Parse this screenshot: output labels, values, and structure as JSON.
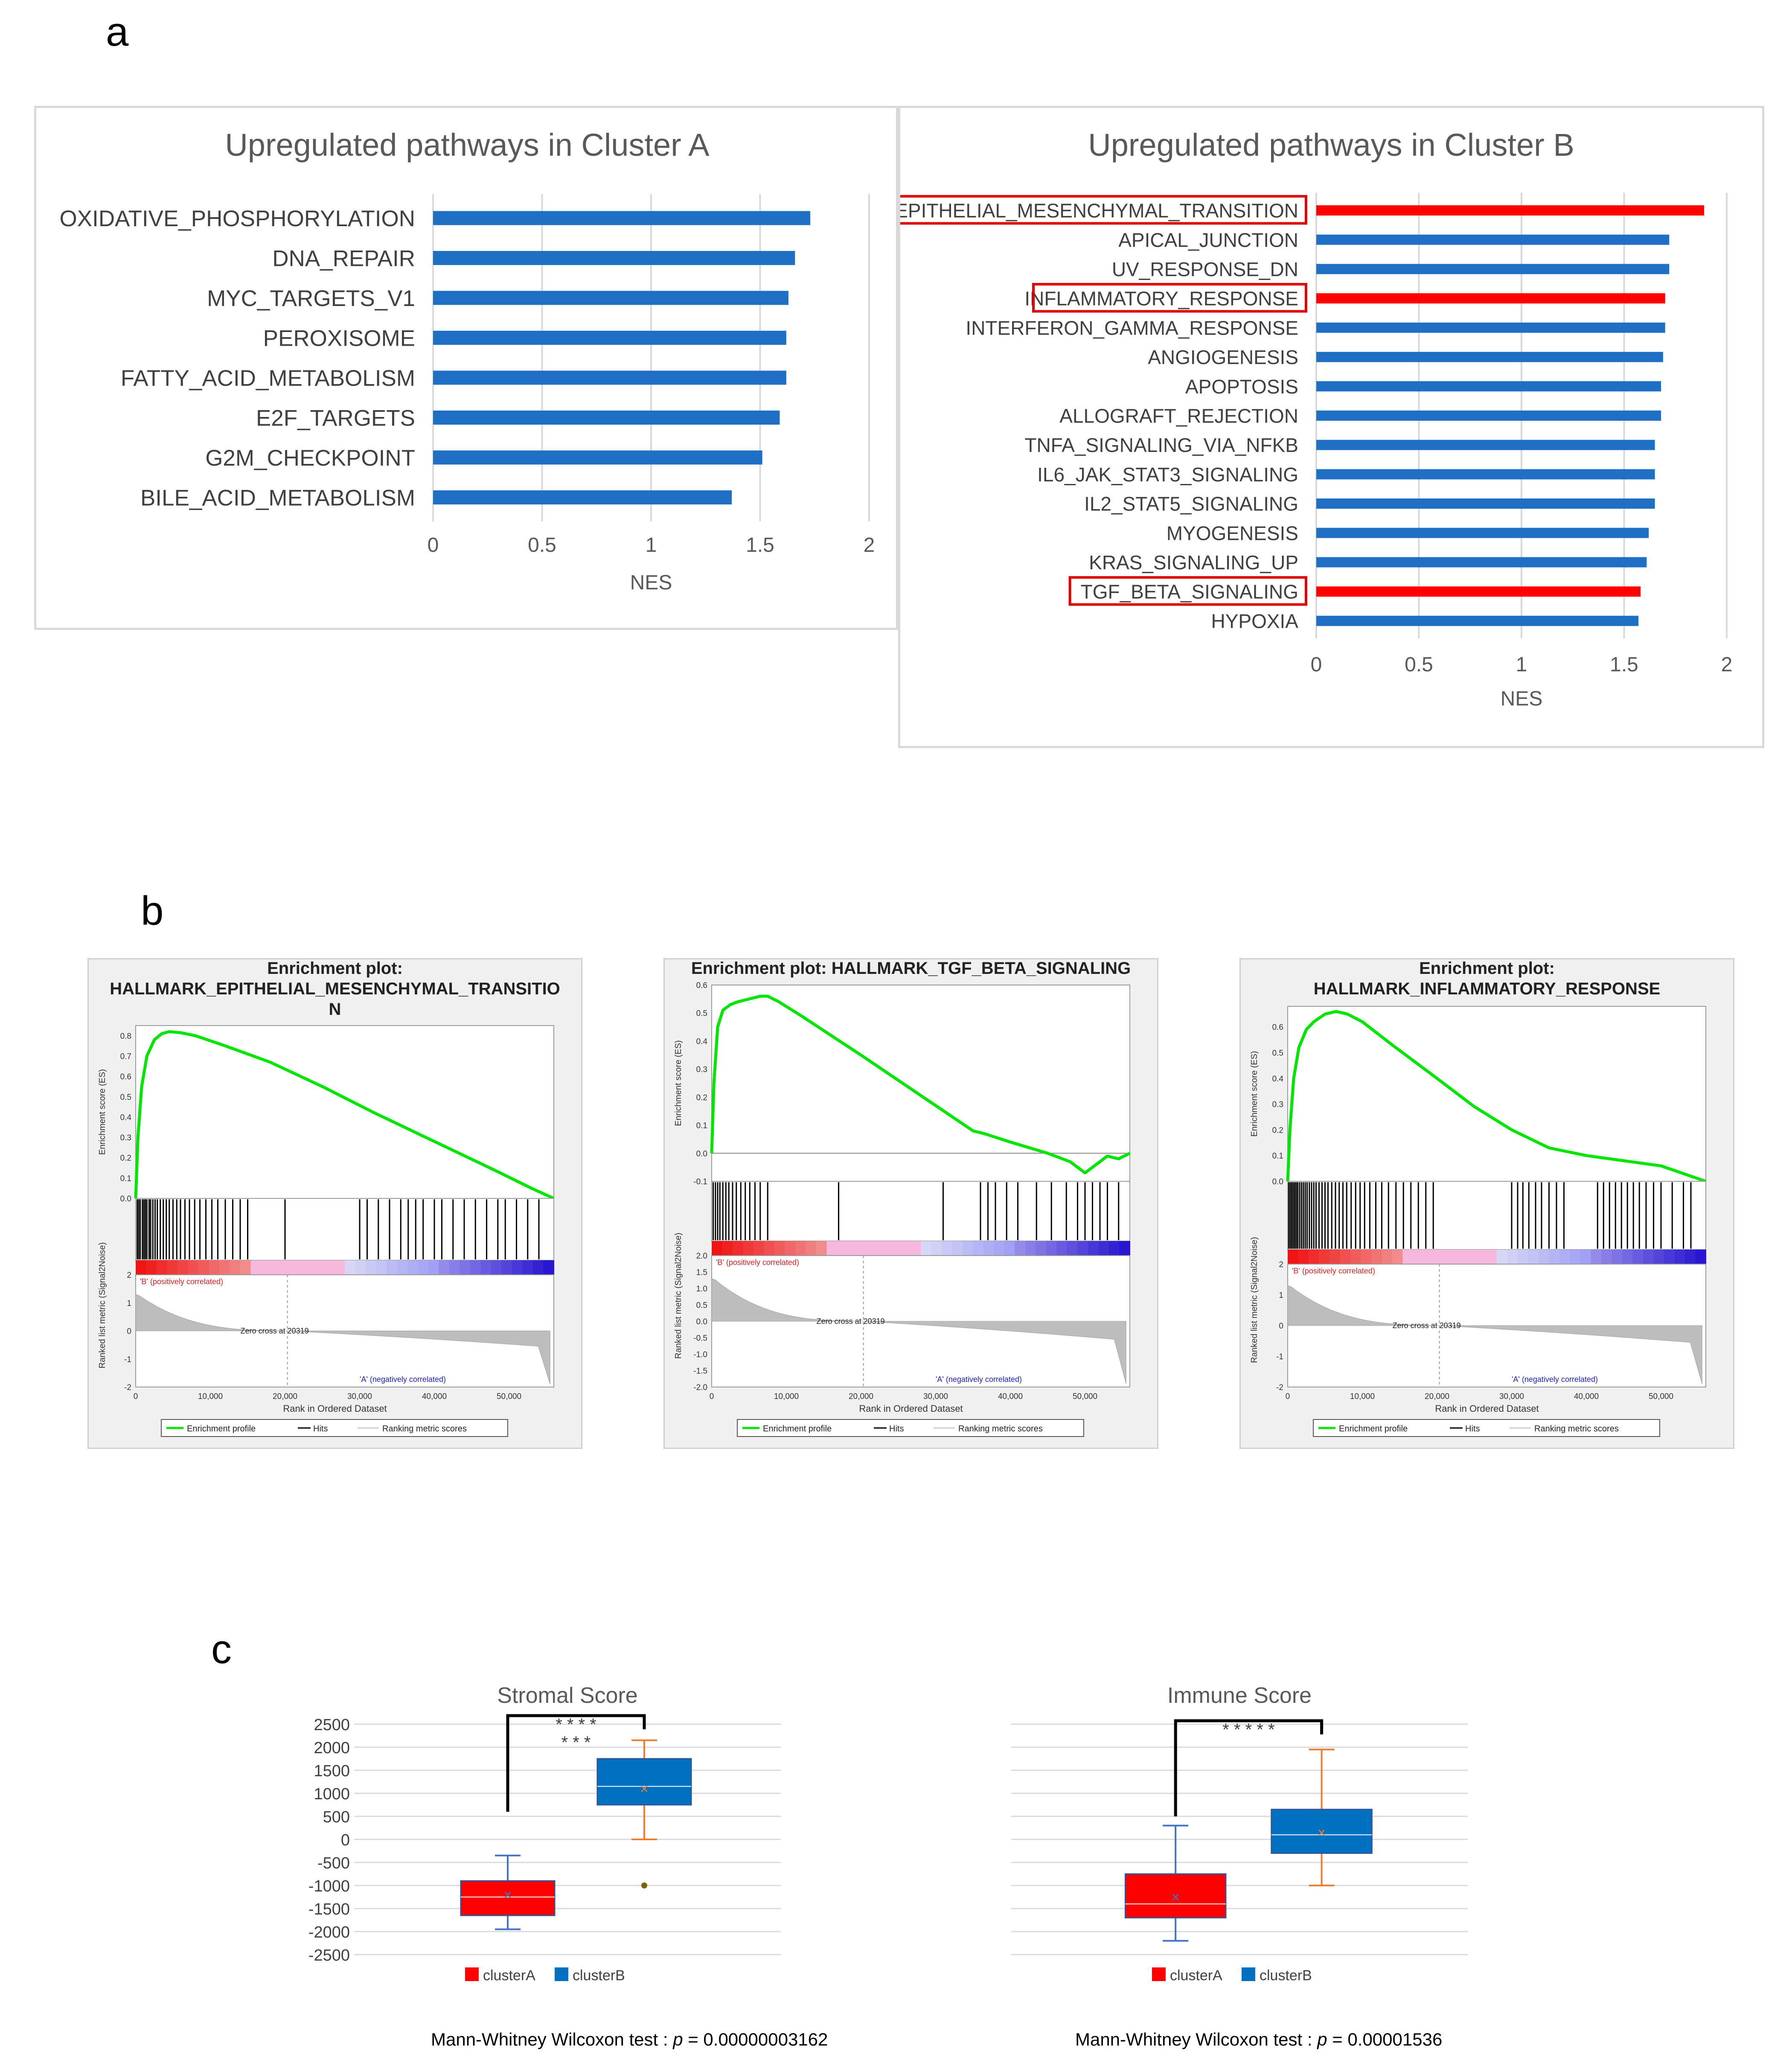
{
  "labels": {
    "a": "a",
    "b": "b",
    "c": "c"
  },
  "chart_data": [
    {
      "id": "cluster-a-bars",
      "type": "bar",
      "orientation": "horizontal",
      "title": "Upregulated pathways in Cluster A",
      "xlabel": "NES",
      "xlim": [
        0,
        2
      ],
      "xticks": [
        "0",
        "0.5",
        "1",
        "1.5",
        "2"
      ],
      "bar_color": "#1f6fc5",
      "categories": [
        "OXIDATIVE_PHOSPHORYLATION",
        "DNA_REPAIR",
        "MYC_TARGETS_V1",
        "PEROXISOME",
        "FATTY_ACID_METABOLISM",
        "E2F_TARGETS",
        "G2M_CHECKPOINT",
        "BILE_ACID_METABOLISM"
      ],
      "values": [
        1.73,
        1.66,
        1.63,
        1.62,
        1.62,
        1.59,
        1.51,
        1.37
      ]
    },
    {
      "id": "cluster-b-bars",
      "type": "bar",
      "orientation": "horizontal",
      "title": "Upregulated pathways in Cluster B",
      "xlabel": "NES",
      "xlim": [
        0,
        2
      ],
      "xticks": [
        "0",
        "0.5",
        "1",
        "1.5",
        "2"
      ],
      "bar_color": "#1f6fc5",
      "highlight_color": "#ff0000",
      "categories": [
        "EPITHELIAL_MESENCHYMAL_TRANSITION",
        "APICAL_JUNCTION",
        "UV_RESPONSE_DN",
        "INFLAMMATORY_RESPONSE",
        "INTERFERON_GAMMA_RESPONSE",
        "ANGIOGENESIS",
        "APOPTOSIS",
        "ALLOGRAFT_REJECTION",
        "TNFA_SIGNALING_VIA_NFKB",
        "IL6_JAK_STAT3_SIGNALING",
        "IL2_STAT5_SIGNALING",
        "MYOGENESIS",
        "KRAS_SIGNALING_UP",
        "TGF_BETA_SIGNALING",
        "HYPOXIA"
      ],
      "values": [
        1.89,
        1.72,
        1.72,
        1.7,
        1.7,
        1.69,
        1.68,
        1.68,
        1.65,
        1.65,
        1.65,
        1.62,
        1.61,
        1.58,
        1.57
      ],
      "highlighted": [
        true,
        false,
        false,
        true,
        false,
        false,
        false,
        false,
        false,
        false,
        false,
        false,
        false,
        true,
        false
      ]
    },
    {
      "id": "gsea-emt",
      "type": "line",
      "title": "Enrichment plot:\nHALLMARK_EPITHELIAL_MESENCHYMAL_TRANSITIO\nN",
      "es_ylabel": "Enrichment score (ES)",
      "es_yticks": [
        "0.8",
        "0.7",
        "0.6",
        "0.5",
        "0.4",
        "0.3",
        "0.2",
        "0.1",
        "0.0"
      ],
      "es_ylim": [
        0,
        0.85
      ],
      "rank_ylabel": "Ranked list metric (Signal2Noise)",
      "rank_yticks": [
        "2",
        "1",
        "0",
        "-1",
        "-2"
      ],
      "rank_ylim": [
        -2,
        2
      ],
      "xlabel": "Rank in Ordered Dataset",
      "xticks": [
        "0",
        "10,000",
        "20,000",
        "30,000",
        "40,000",
        "50,000"
      ],
      "xlim": [
        0,
        56000
      ],
      "pos_label": "'B' (positively correlated)",
      "neg_label": "'A' (negatively correlated)",
      "zero_cross": "Zero cross at 20319",
      "zero_cross_x": 20319,
      "legend": [
        "Enrichment profile",
        "Hits",
        "Ranking metric scores"
      ],
      "es_curve": {
        "x": [
          0,
          300,
          800,
          1500,
          2500,
          3500,
          4500,
          6000,
          8000,
          12000,
          18000,
          25000,
          32000,
          40000,
          48000,
          53000,
          56000
        ],
        "y": [
          0.0,
          0.3,
          0.55,
          0.7,
          0.78,
          0.81,
          0.82,
          0.815,
          0.8,
          0.75,
          0.67,
          0.55,
          0.42,
          0.28,
          0.14,
          0.05,
          0.0
        ]
      },
      "hits": [
        200,
        400,
        600,
        900,
        1100,
        1300,
        1500,
        1800,
        2000,
        2300,
        2600,
        2900,
        3300,
        3700,
        4100,
        4500,
        5000,
        5500,
        6000,
        6600,
        7200,
        7900,
        8600,
        9400,
        10200,
        11000,
        12000,
        13000,
        14000,
        15000,
        20000,
        30000,
        31000,
        32500,
        34000,
        35500,
        36500,
        37500,
        38500,
        40000,
        41000,
        42500,
        44000,
        45500,
        47000,
        48500,
        49500,
        51000,
        52500,
        54000
      ]
    },
    {
      "id": "gsea-tgf",
      "type": "line",
      "title": "Enrichment plot: HALLMARK_TGF_BETA_SIGNALING",
      "es_ylabel": "Enrichment score (ES)",
      "es_yticks": [
        "0.6",
        "0.5",
        "0.4",
        "0.3",
        "0.2",
        "0.1",
        "0.0",
        "-0.1"
      ],
      "es_ylim": [
        -0.1,
        0.6
      ],
      "rank_ylabel": "Ranked list metric (Signal2Noise)",
      "rank_yticks": [
        "2.0",
        "1.5",
        "1.0",
        "0.5",
        "0.0",
        "-0.5",
        "-1.0",
        "-1.5",
        "-2.0"
      ],
      "rank_ylim": [
        -2,
        2
      ],
      "xlabel": "Rank in Ordered Dataset",
      "xticks": [
        "0",
        "10,000",
        "20,000",
        "30,000",
        "40,000",
        "50,000"
      ],
      "xlim": [
        0,
        56000
      ],
      "pos_label": "'B' (positively correlated)",
      "neg_label": "'A' (negatively correlated)",
      "zero_cross": "Zero cross at 20319",
      "zero_cross_x": 20319,
      "legend": [
        "Enrichment profile",
        "Hits",
        "Ranking metric scores"
      ],
      "es_curve": {
        "x": [
          0,
          300,
          800,
          1500,
          2500,
          3500,
          5000,
          6500,
          7500,
          9000,
          12000,
          16000,
          20000,
          25000,
          30000,
          35000,
          36500,
          40000,
          45000,
          48000,
          50000,
          51500,
          53000,
          54500,
          56000
        ],
        "y": [
          0.0,
          0.25,
          0.45,
          0.51,
          0.53,
          0.54,
          0.55,
          0.56,
          0.56,
          0.54,
          0.49,
          0.42,
          0.35,
          0.26,
          0.17,
          0.08,
          0.07,
          0.04,
          0.0,
          -0.03,
          -0.07,
          -0.04,
          -0.01,
          -0.02,
          0.0
        ]
      },
      "hits": [
        200,
        500,
        800,
        1100,
        1500,
        1900,
        2300,
        2800,
        3300,
        3900,
        4500,
        5100,
        5800,
        6500,
        7500,
        17000,
        31000,
        36000,
        37000,
        38000,
        39500,
        41000,
        43500,
        45500,
        47500,
        49000,
        50000,
        51000,
        52000,
        53000,
        54500
      ]
    },
    {
      "id": "gsea-inflam",
      "type": "line",
      "title": "Enrichment plot:\nHALLMARK_INFLAMMATORY_RESPONSE",
      "es_ylabel": "Enrichment score (ES)",
      "es_yticks": [
        "0.6",
        "0.5",
        "0.4",
        "0.3",
        "0.2",
        "0.1",
        "0.0"
      ],
      "es_ylim": [
        0,
        0.68
      ],
      "rank_ylabel": "Ranked list metric (Signal2Noise)",
      "rank_yticks": [
        "2",
        "1",
        "0",
        "-1",
        "-2"
      ],
      "rank_ylim": [
        -2,
        2
      ],
      "xlabel": "Rank in Ordered Dataset",
      "xticks": [
        "0",
        "10,000",
        "20,000",
        "30,000",
        "40,000",
        "50,000"
      ],
      "xlim": [
        0,
        56000
      ],
      "pos_label": "'B' (positively correlated)",
      "neg_label": "'A' (negatively correlated)",
      "zero_cross": "Zero cross at 20319",
      "zero_cross_x": 20319,
      "legend": [
        "Enrichment profile",
        "Hits",
        "Ranking metric scores"
      ],
      "es_curve": {
        "x": [
          0,
          300,
          800,
          1500,
          2500,
          3500,
          5000,
          6500,
          8000,
          10000,
          14000,
          20000,
          25000,
          30000,
          35000,
          40000,
          45000,
          50000,
          53000,
          56000
        ],
        "y": [
          0.0,
          0.2,
          0.4,
          0.52,
          0.59,
          0.62,
          0.65,
          0.66,
          0.65,
          0.62,
          0.53,
          0.4,
          0.29,
          0.2,
          0.13,
          0.1,
          0.08,
          0.06,
          0.03,
          0.0
        ]
      },
      "hits": [
        150,
        350,
        550,
        750,
        950,
        1150,
        1350,
        1600,
        1850,
        2100,
        2350,
        2600,
        2900,
        3200,
        3500,
        3800,
        4200,
        4600,
        5000,
        5400,
        5900,
        6400,
        6900,
        7400,
        7900,
        8500,
        9100,
        9700,
        10300,
        11000,
        11800,
        12600,
        13500,
        14500,
        15500,
        16500,
        17500,
        18500,
        19500,
        30000,
        30800,
        31500,
        32300,
        33200,
        34000,
        35000,
        36000,
        37000,
        41500,
        42300,
        43100,
        43900,
        44700,
        45500,
        46300,
        47100,
        48000,
        49000,
        50000,
        51500,
        53000,
        54000
      ]
    },
    {
      "id": "stromal-box",
      "type": "box",
      "title": "Stromal Score",
      "ylim": [
        -2500,
        2500
      ],
      "yticks": [
        "2500",
        "2000",
        "1500",
        "1000",
        "500",
        "0",
        "-500",
        "-1000",
        "-1500",
        "-2000",
        "-2500"
      ],
      "series": [
        {
          "name": "clusterA",
          "color": "#ff0000",
          "whisker_color": "#4472c4",
          "min": -1950,
          "q1": -1650,
          "median": -1250,
          "q3": -900,
          "max": -350,
          "mean": -1200,
          "outliers": []
        },
        {
          "name": "clusterB",
          "color": "#0070c0",
          "whisker_color": "#ed7d31",
          "min": 0,
          "q1": 750,
          "median": 1150,
          "q3": 1750,
          "max": 2150,
          "mean": 1100,
          "outliers": [
            -1000
          ]
        }
      ],
      "significance": [
        "* * * *",
        "* * *"
      ],
      "test_label": "Mann-Whitney Wilcoxon test :",
      "p_label": "p",
      "p_value": "= 0.00000003162"
    },
    {
      "id": "immune-box",
      "type": "box",
      "title": "Immune Score",
      "ylim": [
        -2500,
        2500
      ],
      "yticks": [],
      "series": [
        {
          "name": "clusterA",
          "color": "#ff0000",
          "whisker_color": "#4472c4",
          "min": -2200,
          "q1": -1700,
          "median": -1400,
          "q3": -750,
          "max": 300,
          "mean": -1250,
          "outliers": []
        },
        {
          "name": "clusterB",
          "color": "#0070c0",
          "whisker_color": "#ed7d31",
          "min": -1000,
          "q1": -300,
          "median": 100,
          "q3": 650,
          "max": 1950,
          "mean": 150,
          "outliers": []
        }
      ],
      "significance": [
        "* * * * *"
      ],
      "test_label": "Mann-Whitney Wilcoxon test :",
      "p_label": "p",
      "p_value": "= 0.00001536"
    }
  ]
}
